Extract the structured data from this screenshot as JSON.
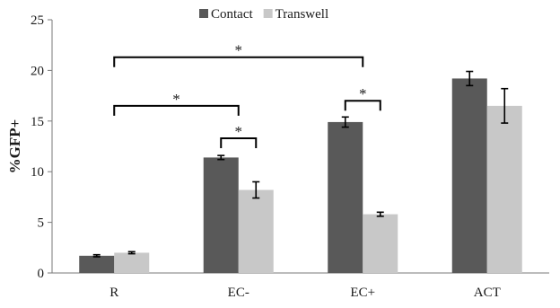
{
  "chart_data": {
    "type": "bar",
    "ylabel": "%GFP+",
    "xlabel": "",
    "ylim": [
      0,
      25
    ],
    "yticks": [
      0,
      5,
      10,
      15,
      20,
      25
    ],
    "grid": false,
    "legend_position": "top-center",
    "categories": [
      "R",
      "EC-",
      "EC+",
      "ACT"
    ],
    "series": [
      {
        "name": "Contact",
        "color": "#595959",
        "values": [
          1.7,
          11.4,
          14.9,
          19.2
        ],
        "errors": [
          0.1,
          0.2,
          0.5,
          0.7
        ]
      },
      {
        "name": "Transwell",
        "color": "#c8c8c8",
        "values": [
          2.0,
          8.2,
          5.8,
          16.5
        ],
        "errors": [
          0.1,
          0.8,
          0.2,
          1.7
        ]
      }
    ],
    "annotations": [
      {
        "label": "*",
        "from": "R",
        "to": "EC+",
        "level": 21.3
      },
      {
        "label": "*",
        "from": "R",
        "to": "EC-",
        "level": 16.5
      },
      {
        "label": "*",
        "from": "EC-.Contact",
        "to": "EC-.Transwell",
        "level": 13.3
      },
      {
        "label": "*",
        "from": "EC+.Contact",
        "to": "EC+.Transwell",
        "level": 17.0
      }
    ]
  }
}
